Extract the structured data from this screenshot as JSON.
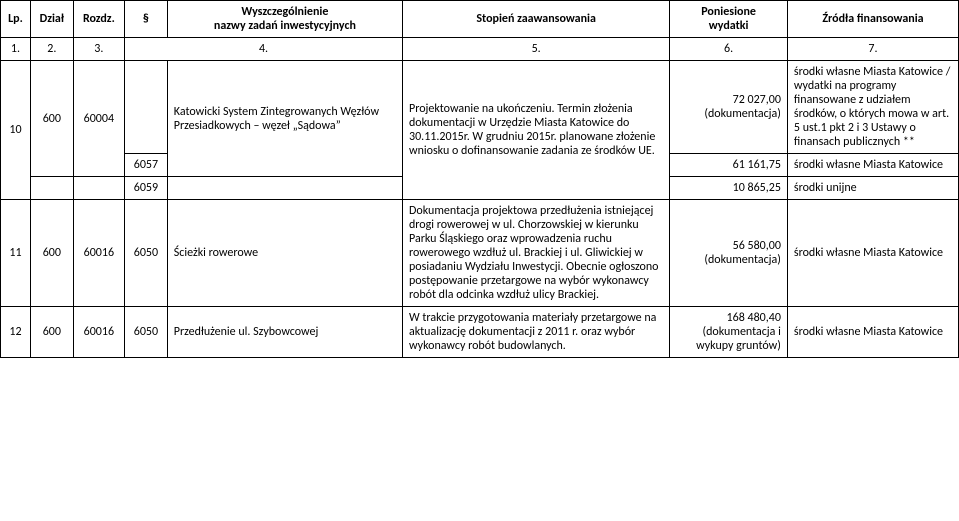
{
  "table": {
    "headers": {
      "lp": "Lp.",
      "dzial": "Dział",
      "rozdz": "Rozdz.",
      "para": "§",
      "wysz": "Wyszczególnienie\nnazwy zadań inwestycyjnych",
      "stopien": "Stopień zaawansowania",
      "wydatki": "Poniesione\nwydatki",
      "zrodla": "Źródła finansowania"
    },
    "num_row": {
      "n1": "1.",
      "n2": "2.",
      "n3": "3.",
      "n4": "4.",
      "n5": "5.",
      "n6": "6.",
      "n7": "7."
    },
    "rows": {
      "r10": {
        "lp": "10",
        "dzial": "600",
        "rozdz": "60004",
        "wysz_main": "Katowicki System Zintegrowanych Węzłów Przesiadkowych – węzeł „Sądowa”",
        "stopien": "Projektowanie na ukończeniu. Termin złożenia dokumentacji w Urzędzie Miasta Katowice do 30.11.2015r. W grudniu 2015r. planowane złożenie wniosku o dofinansowanie zadania ze środków UE.",
        "wyd1": "72 027,00\n(dokumentacja)",
        "zr1": "środki własne Miasta Katowice / wydatki na programy finansowane z udziałem środków, o których mowa w art. 5 ust.1 pkt 2 i 3 Ustawy o finansach publicznych **",
        "para2": "6057",
        "wyd2": "61 161,75",
        "zr2": "środki własne Miasta Katowice",
        "para3": "6059",
        "wyd3": "10 865,25",
        "zr3": "środki unijne"
      },
      "r11": {
        "lp": "11",
        "dzial": "600",
        "rozdz": "60016",
        "para": "6050",
        "wysz": "Ścieżki rowerowe",
        "stopien": "Dokumentacja projektowa przedłużenia istniejącej drogi rowerowej w ul. Chorzowskiej w kierunku Parku Śląskiego oraz wprowadzenia ruchu rowerowego wzdłuż ul. Brackiej i ul. Gliwickiej w posiadaniu Wydziału Inwestycji. Obecnie ogłoszono postępowanie  przetargowe na wybór wykonawcy robót dla odcinka wzdłuż ulicy Brackiej.",
        "wyd": "56 580,00\n(dokumentacja)",
        "zr": "środki własne Miasta Katowice"
      },
      "r12": {
        "lp": "12",
        "dzial": "600",
        "rozdz": "60016",
        "para": "6050",
        "wysz": "Przedłużenie ul. Szybowcowej",
        "stopien": "W trakcie przygotowania materiały przetargowe na aktualizację dokumentacji z 2011 r.  oraz wybór wykonawcy robót budowlanych.",
        "wyd": "168 480,40\n(dokumentacja i wykupy gruntów)",
        "zr": "środki własne Miasta Katowice"
      }
    }
  }
}
